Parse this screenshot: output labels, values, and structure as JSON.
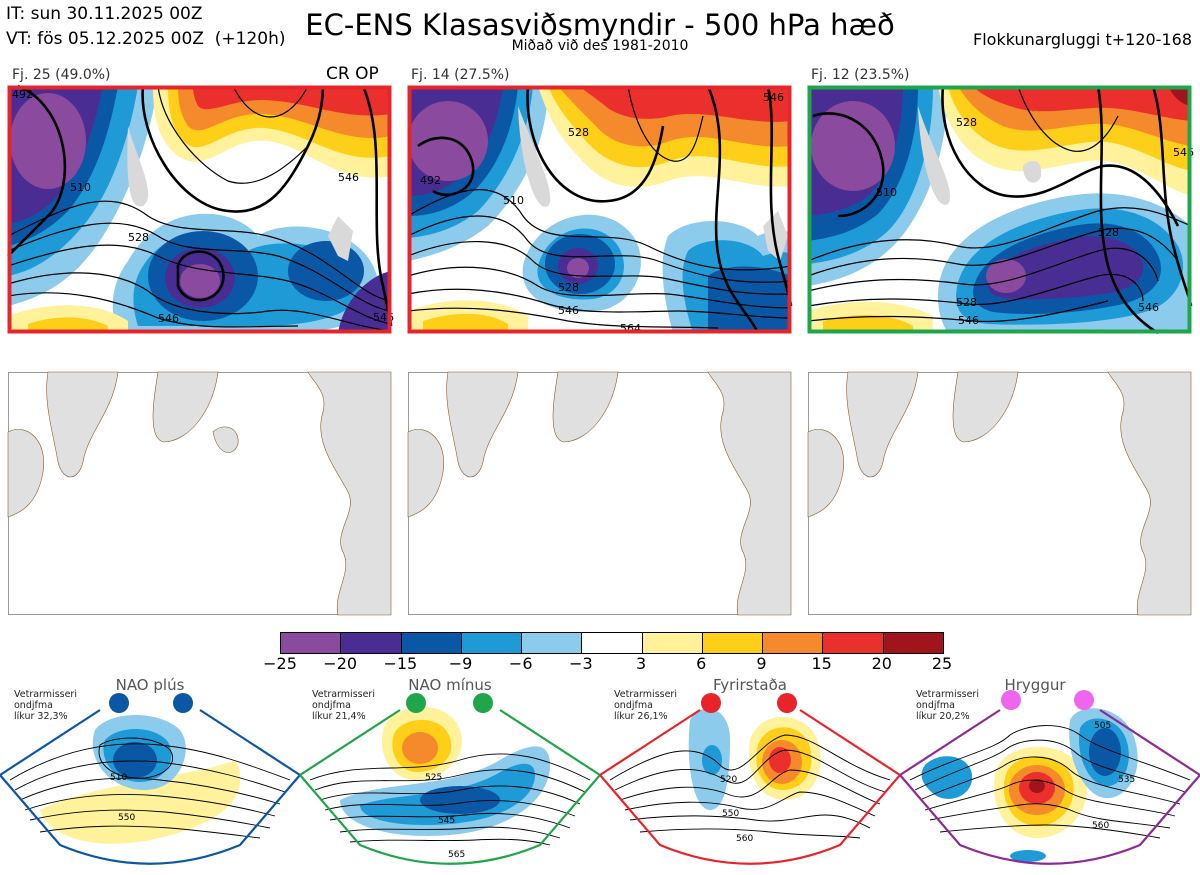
{
  "header": {
    "init_line": "IT: sun 30.11.2025 00Z",
    "valid_line": "VT: fös 05.12.2025 00Z  (+120h)",
    "title": "EC-ENS Klasasviðsmyndir - 500 hPa hæð",
    "subtitle": "Miðað við des 1981-2010",
    "window": "Flokkunargluggi t+120-168"
  },
  "clusters": [
    {
      "label": "Fj. 25 (49.0%)",
      "tag": "CR OP",
      "border_color": "#e8242b",
      "contour_labels": [
        "492",
        "510",
        "528",
        "546",
        "546",
        "546"
      ]
    },
    {
      "label": "Fj. 14 (27.5%)",
      "tag": "",
      "border_color": "#e8242b",
      "contour_labels": [
        "492",
        "510",
        "528",
        "528",
        "546",
        "546",
        "564"
      ]
    },
    {
      "label": "Fj. 12 (23.5%)",
      "tag": "",
      "border_color": "#1fa64a",
      "contour_labels": [
        "528",
        "510",
        "528",
        "528",
        "546",
        "546",
        "546"
      ]
    }
  ],
  "legend": {
    "colors": [
      "#8a4a9e",
      "#4a2d93",
      "#0a57a6",
      "#1e9ad6",
      "#8ccbec",
      "#ffffff",
      "#fff29a",
      "#fecf18",
      "#f58a2c",
      "#ea2f2c",
      "#a0141c"
    ],
    "ticks": [
      "−25",
      "−20",
      "−15",
      "−9",
      "−6",
      "−3",
      "3",
      "6",
      "9",
      "15",
      "20",
      "25"
    ]
  },
  "regimes": [
    {
      "name": "NAO plús",
      "info": "Vetrarmisseri\nondjfma\nlíkur 32,3%",
      "color": "#0a57a6",
      "labels": [
        "510",
        "550"
      ]
    },
    {
      "name": "NAO mínus",
      "info": "Vetrarmisseri\nondjfma\nlíkur 21,4%",
      "color": "#1fa64a",
      "labels": [
        "525",
        "545",
        "565"
      ]
    },
    {
      "name": "Fyrirstaða",
      "info": "Vetrarmisseri\nondjfma\nlíkur 26,1%",
      "color": "#e8242b",
      "labels": [
        "520",
        "550",
        "560"
      ]
    },
    {
      "name": "Hryggur",
      "info": "Vetrarmisseri\nondjfma\nlíkur 20,2%",
      "color": "#8e2a96",
      "labels": [
        "505",
        "535",
        "560"
      ]
    }
  ]
}
